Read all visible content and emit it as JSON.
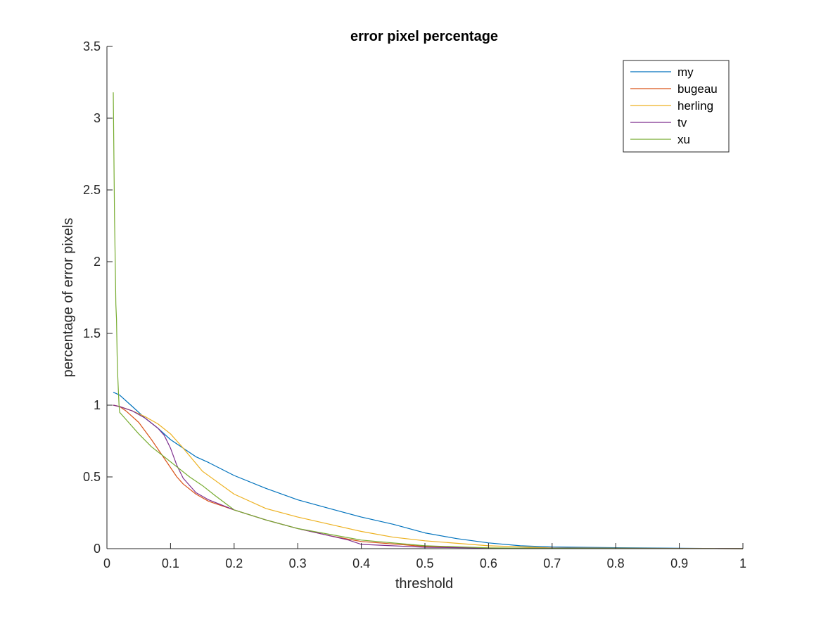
{
  "chart_data": {
    "type": "line",
    "title": "error pixel percentage",
    "xlabel": "threshold",
    "ylabel": "percentage of error pixels",
    "xlim": [
      0,
      1
    ],
    "ylim": [
      0,
      3.5
    ],
    "xticks": [
      "0",
      "0.1",
      "0.2",
      "0.3",
      "0.4",
      "0.5",
      "0.6",
      "0.7",
      "0.8",
      "0.9",
      "1"
    ],
    "yticks": [
      "0",
      "0.5",
      "1",
      "1.5",
      "2",
      "2.5",
      "3",
      "3.5"
    ],
    "grid": false,
    "legend_position": "top-right",
    "series": [
      {
        "name": "my",
        "color": "#0072BD",
        "x": [
          0.01,
          0.02,
          0.04,
          0.06,
          0.08,
          0.1,
          0.12,
          0.14,
          0.16,
          0.2,
          0.25,
          0.3,
          0.35,
          0.4,
          0.45,
          0.5,
          0.55,
          0.6,
          0.65,
          0.7,
          0.8,
          0.9,
          1.0
        ],
        "y": [
          1.09,
          1.07,
          0.99,
          0.91,
          0.84,
          0.76,
          0.7,
          0.64,
          0.6,
          0.51,
          0.42,
          0.34,
          0.28,
          0.22,
          0.17,
          0.11,
          0.07,
          0.04,
          0.02,
          0.012,
          0.007,
          0.003,
          0.0
        ]
      },
      {
        "name": "bugeau",
        "color": "#D95319",
        "x": [
          0.01,
          0.02,
          0.03,
          0.05,
          0.07,
          0.09,
          0.11,
          0.12,
          0.14,
          0.16,
          0.2,
          0.25,
          0.3,
          0.35,
          0.4,
          0.5,
          0.6,
          0.7,
          1.0
        ],
        "y": [
          1.0,
          0.99,
          0.96,
          0.88,
          0.76,
          0.63,
          0.5,
          0.45,
          0.38,
          0.33,
          0.27,
          0.2,
          0.14,
          0.09,
          0.05,
          0.015,
          0.005,
          0.002,
          0.0
        ]
      },
      {
        "name": "herling",
        "color": "#EDB120",
        "x": [
          0.01,
          0.02,
          0.04,
          0.06,
          0.08,
          0.1,
          0.12,
          0.15,
          0.2,
          0.25,
          0.3,
          0.35,
          0.4,
          0.45,
          0.5,
          0.6,
          0.7,
          1.0
        ],
        "y": [
          1.0,
          0.99,
          0.96,
          0.92,
          0.87,
          0.8,
          0.7,
          0.54,
          0.38,
          0.28,
          0.22,
          0.17,
          0.12,
          0.08,
          0.055,
          0.02,
          0.005,
          0.0
        ]
      },
      {
        "name": "tv",
        "color": "#7E2F8E",
        "x": [
          0.01,
          0.02,
          0.04,
          0.06,
          0.08,
          0.09,
          0.1,
          0.11,
          0.12,
          0.14,
          0.16,
          0.2,
          0.25,
          0.3,
          0.35,
          0.38,
          0.4,
          0.5,
          0.6,
          1.0
        ],
        "y": [
          1.0,
          0.99,
          0.96,
          0.91,
          0.84,
          0.79,
          0.7,
          0.58,
          0.49,
          0.39,
          0.34,
          0.27,
          0.2,
          0.14,
          0.09,
          0.06,
          0.03,
          0.01,
          0.004,
          0.0
        ]
      },
      {
        "name": "xu",
        "color": "#77AC30",
        "x": [
          0.01,
          0.012,
          0.013,
          0.014,
          0.015,
          0.016,
          0.017,
          0.018,
          0.019,
          0.02,
          0.03,
          0.05,
          0.07,
          0.09,
          0.11,
          0.13,
          0.15,
          0.17,
          0.2,
          0.25,
          0.3,
          0.35,
          0.4,
          0.5,
          0.6,
          0.7,
          1.0
        ],
        "y": [
          3.18,
          2.3,
          2.0,
          1.7,
          1.6,
          1.35,
          1.2,
          1.1,
          1.0,
          0.95,
          0.9,
          0.8,
          0.71,
          0.64,
          0.57,
          0.5,
          0.44,
          0.37,
          0.27,
          0.2,
          0.14,
          0.1,
          0.06,
          0.02,
          0.006,
          0.002,
          0.0
        ]
      }
    ]
  }
}
